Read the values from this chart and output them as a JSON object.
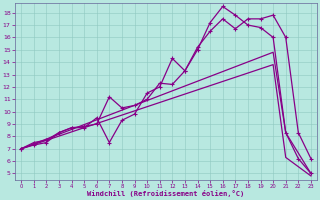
{
  "xlabel": "Windchill (Refroidissement éolien,°C)",
  "bg_color": "#b8e8e0",
  "line_color": "#880088",
  "xlim": [
    -0.5,
    23.5
  ],
  "ylim": [
    4.5,
    18.8
  ],
  "xticks": [
    0,
    1,
    2,
    3,
    4,
    5,
    6,
    7,
    8,
    9,
    10,
    11,
    12,
    13,
    14,
    15,
    16,
    17,
    18,
    19,
    20,
    21,
    22,
    23
  ],
  "yticks": [
    5,
    6,
    7,
    8,
    9,
    10,
    11,
    12,
    13,
    14,
    15,
    16,
    17,
    18
  ],
  "curve1_x": [
    0,
    1,
    2,
    3,
    4,
    5,
    6,
    7,
    8,
    9,
    10,
    11,
    12,
    13,
    14,
    15,
    16,
    17,
    18,
    19,
    20,
    21,
    22,
    23
  ],
  "curve1_y": [
    7.0,
    7.5,
    7.7,
    8.3,
    8.7,
    8.8,
    9.0,
    11.2,
    10.3,
    10.5,
    11.0,
    12.3,
    12.2,
    13.3,
    15.0,
    17.2,
    18.5,
    17.8,
    17.0,
    16.8,
    16.0,
    8.3,
    6.2,
    5.0
  ],
  "curve2_x": [
    0,
    1,
    2,
    3,
    4,
    5,
    6,
    7,
    8,
    9,
    10,
    11,
    12,
    13,
    14,
    15,
    16,
    17,
    18,
    19,
    20,
    21,
    22,
    23
  ],
  "curve2_y": [
    7.0,
    7.3,
    7.5,
    8.3,
    8.7,
    8.7,
    9.5,
    7.5,
    9.3,
    9.8,
    11.5,
    12.0,
    14.3,
    13.3,
    15.2,
    16.5,
    17.5,
    16.7,
    17.5,
    17.5,
    17.8,
    16.0,
    8.3,
    6.2
  ],
  "line1_x": [
    0,
    20,
    21,
    23
  ],
  "line1_y": [
    7.0,
    14.8,
    8.3,
    5.0
  ],
  "line2_x": [
    0,
    20,
    21,
    23
  ],
  "line2_y": [
    7.0,
    13.8,
    6.3,
    4.8
  ]
}
